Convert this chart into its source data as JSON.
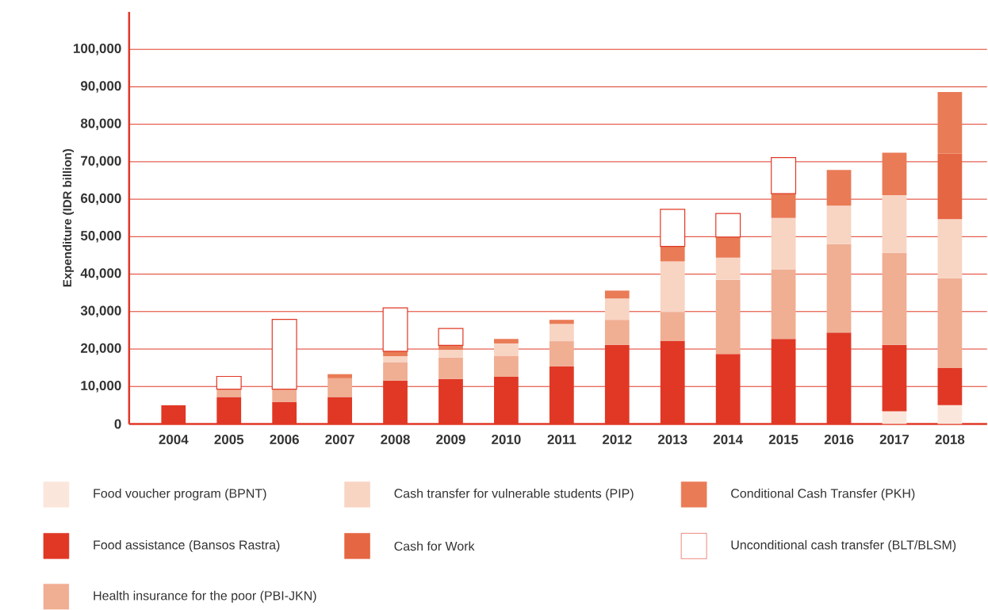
{
  "chart_data": {
    "type": "bar",
    "stacked": true,
    "ylabel": "Expenditure (IDR billion)",
    "categories": [
      "2004",
      "2005",
      "2006",
      "2007",
      "2008",
      "2009",
      "2010",
      "2011",
      "2012",
      "2013",
      "2014",
      "2015",
      "2016",
      "2017",
      "2018"
    ],
    "series": [
      {
        "name": "Food voucher program (BPNT)",
        "color": "#fbe6dc",
        "values": [
          null,
          null,
          null,
          null,
          null,
          null,
          null,
          null,
          null,
          null,
          null,
          null,
          null,
          3400,
          5000
        ]
      },
      {
        "name": "Food assistance (Bansos Rastra)",
        "color": "#e03825",
        "values": [
          5000,
          7200,
          5900,
          7200,
          11600,
          12000,
          12600,
          15400,
          21100,
          22100,
          18700,
          22700,
          24400,
          17700,
          9900
        ]
      },
      {
        "name": "Health insurance for the poor (PBI-JKN)",
        "color": "#f0ae93",
        "values": [
          null,
          2100,
          3400,
          5000,
          4800,
          5700,
          5500,
          6700,
          6700,
          7800,
          19800,
          18600,
          23600,
          24600,
          24000
        ]
      },
      {
        "name": "Cash transfer for vulnerable students (PIP)",
        "color": "#f8d4c3",
        "values": [
          null,
          null,
          null,
          null,
          1700,
          2100,
          3400,
          4600,
          5700,
          13500,
          5900,
          13700,
          10300,
          15400,
          15800
        ]
      },
      {
        "name": "Cash for Work",
        "color": "#e56642",
        "values": [
          null,
          null,
          null,
          null,
          null,
          null,
          null,
          null,
          null,
          null,
          null,
          null,
          null,
          null,
          17500
        ]
      },
      {
        "name": "Conditional Cash Transfer (PKH)",
        "color": "#e97b56",
        "values": [
          null,
          null,
          null,
          1100,
          1300,
          1200,
          1200,
          1100,
          2100,
          4000,
          5500,
          6500,
          9500,
          11300,
          16400
        ]
      },
      {
        "name": "Unconditional cash transfer (BLT/BLSM)",
        "color": "#ffffff",
        "values": [
          null,
          3400,
          18600,
          null,
          11600,
          4500,
          null,
          null,
          null,
          9900,
          6300,
          9600,
          null,
          null,
          null
        ]
      }
    ],
    "ylim": [
      0,
      110000
    ],
    "yticks": [
      {
        "value": 0,
        "label": "0"
      },
      {
        "value": 10000,
        "label": "10,000"
      },
      {
        "value": 20000,
        "label": "20,000"
      },
      {
        "value": 30000,
        "label": "30,000"
      },
      {
        "value": 40000,
        "label": "40,000"
      },
      {
        "value": 50000,
        "label": "50,000"
      },
      {
        "value": 60000,
        "label": "60,000"
      },
      {
        "value": 70000,
        "label": "70,000"
      },
      {
        "value": 80000,
        "label": "80,000"
      },
      {
        "value": 90000,
        "label": "90,000"
      },
      {
        "value": 100000,
        "label": "100,000"
      }
    ],
    "grid": "y",
    "legend": "bottom"
  }
}
